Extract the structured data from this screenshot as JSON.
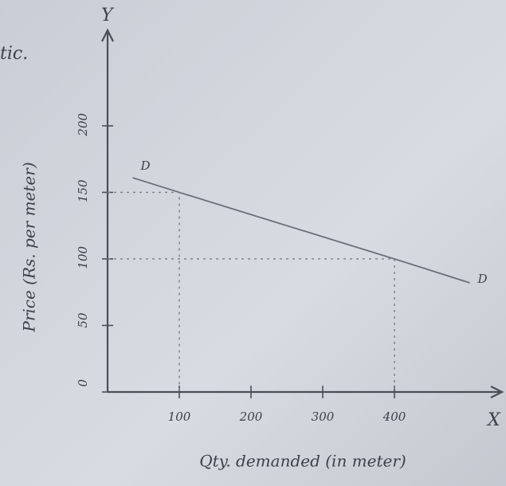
{
  "chart_data": {
    "type": "line",
    "corner_note": "tic.",
    "x_axis_letter": "X",
    "y_axis_letter": "Y",
    "x_label": "Qty. demanded (in meter)",
    "y_label": "Price (Rs. per meter)",
    "x": [
      35,
      100,
      400,
      505
    ],
    "series": [
      {
        "name": "D",
        "color": "#6a7078",
        "values": [
          161,
          150,
          100,
          82
        ]
      }
    ],
    "curve_end_labels": [
      "D",
      "D"
    ],
    "xlim": [
      0,
      550
    ],
    "ylim": [
      0,
      270
    ],
    "xticks": [
      100,
      200,
      300,
      400
    ],
    "yticks": [
      0,
      50,
      100,
      150,
      200
    ]
  }
}
